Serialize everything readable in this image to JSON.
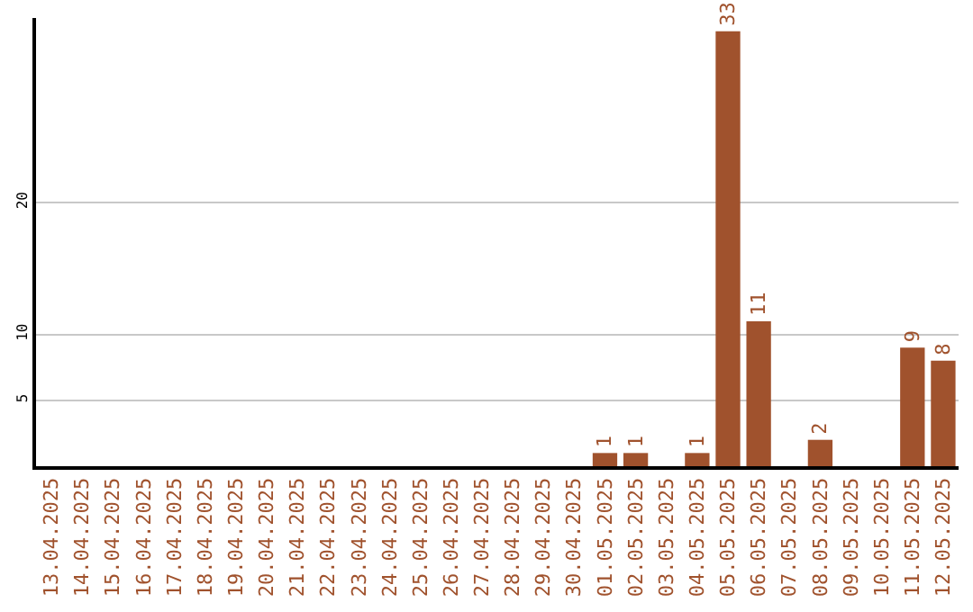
{
  "chart_data": {
    "type": "bar",
    "categories": [
      "13.04.2025",
      "14.04.2025",
      "15.04.2025",
      "16.04.2025",
      "17.04.2025",
      "18.04.2025",
      "19.04.2025",
      "20.04.2025",
      "21.04.2025",
      "22.04.2025",
      "23.04.2025",
      "24.04.2025",
      "25.04.2025",
      "26.04.2025",
      "27.04.2025",
      "28.04.2025",
      "29.04.2025",
      "30.04.2025",
      "01.05.2025",
      "02.05.2025",
      "03.05.2025",
      "04.05.2025",
      "05.05.2025",
      "06.05.2025",
      "07.05.2025",
      "08.05.2025",
      "09.05.2025",
      "10.05.2025",
      "11.05.2025",
      "12.05.2025"
    ],
    "values": [
      0,
      0,
      0,
      0,
      0,
      0,
      0,
      0,
      0,
      0,
      0,
      0,
      0,
      0,
      0,
      0,
      0,
      0,
      1,
      1,
      0,
      1,
      33,
      11,
      0,
      2,
      0,
      0,
      9,
      8
    ],
    "value_labels": [
      null,
      null,
      null,
      null,
      null,
      null,
      null,
      null,
      null,
      null,
      null,
      null,
      null,
      null,
      null,
      null,
      null,
      null,
      "1",
      "1",
      null,
      "1",
      "33",
      "11",
      null,
      "2",
      null,
      null,
      "9",
      "8"
    ],
    "color": "#a0522d",
    "ylim": [
      0,
      34
    ],
    "yticks": [
      5,
      10,
      20
    ],
    "grid": "y",
    "legend": false
  }
}
